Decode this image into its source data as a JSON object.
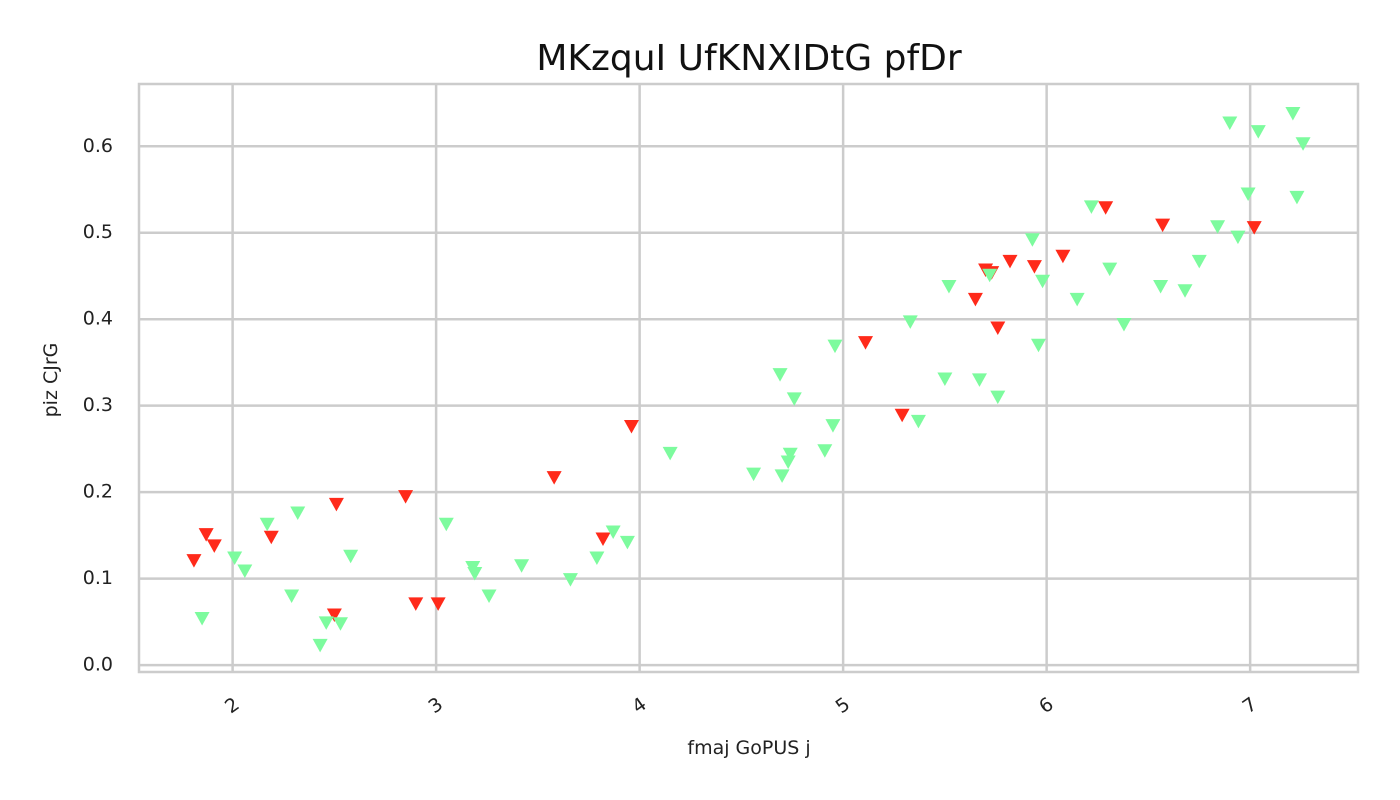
{
  "chart_data": {
    "type": "scatter",
    "title": "MKzquI UfKNXIDtG pfDr",
    "xlabel": "fmaj GoPUS j",
    "ylabel": "piz CJrG",
    "xlim": [
      1.54,
      7.53
    ],
    "ylim": [
      -0.008,
      0.672
    ],
    "xticks": [
      2,
      3,
      4,
      5,
      6,
      7
    ],
    "xtick_labels": [
      "2",
      "3",
      "4",
      "5",
      "6",
      "7"
    ],
    "yticks": [
      0.0,
      0.1,
      0.2,
      0.3,
      0.4,
      0.5,
      0.6
    ],
    "ytick_labels": [
      "0.0",
      "0.1",
      "0.2",
      "0.3",
      "0.4",
      "0.5",
      "0.6"
    ],
    "grid": true,
    "marker": "triangle-down",
    "series": [
      {
        "color": "#ff2a1a",
        "points": [
          [
            1.81,
            0.121
          ],
          [
            1.87,
            0.151
          ],
          [
            1.91,
            0.138
          ],
          [
            2.19,
            0.148
          ],
          [
            2.51,
            0.186
          ],
          [
            2.5,
            0.058
          ],
          [
            2.85,
            0.195
          ],
          [
            2.9,
            0.071
          ],
          [
            3.01,
            0.071
          ],
          [
            3.58,
            0.217
          ],
          [
            3.82,
            0.146
          ],
          [
            3.96,
            0.276
          ],
          [
            5.11,
            0.373
          ],
          [
            5.29,
            0.289
          ],
          [
            5.65,
            0.423
          ],
          [
            5.7,
            0.457
          ],
          [
            5.73,
            0.454
          ],
          [
            5.76,
            0.39
          ],
          [
            5.82,
            0.467
          ],
          [
            5.94,
            0.461
          ],
          [
            6.08,
            0.473
          ],
          [
            6.29,
            0.529
          ],
          [
            6.57,
            0.509
          ],
          [
            7.02,
            0.506
          ]
        ]
      },
      {
        "color": "#7dfb9e",
        "points": [
          [
            1.85,
            0.054
          ],
          [
            2.01,
            0.124
          ],
          [
            2.06,
            0.109
          ],
          [
            2.17,
            0.163
          ],
          [
            2.29,
            0.08
          ],
          [
            2.32,
            0.176
          ],
          [
            2.43,
            0.023
          ],
          [
            2.46,
            0.049
          ],
          [
            2.53,
            0.048
          ],
          [
            2.58,
            0.126
          ],
          [
            3.05,
            0.163
          ],
          [
            3.18,
            0.113
          ],
          [
            3.19,
            0.106
          ],
          [
            3.26,
            0.08
          ],
          [
            3.42,
            0.115
          ],
          [
            3.66,
            0.099
          ],
          [
            3.79,
            0.124
          ],
          [
            3.87,
            0.154
          ],
          [
            3.94,
            0.142
          ],
          [
            4.15,
            0.245
          ],
          [
            4.56,
            0.221
          ],
          [
            4.7,
            0.219
          ],
          [
            4.69,
            0.336
          ],
          [
            4.73,
            0.235
          ],
          [
            4.74,
            0.244
          ],
          [
            4.76,
            0.308
          ],
          [
            4.91,
            0.248
          ],
          [
            4.95,
            0.277
          ],
          [
            4.96,
            0.369
          ],
          [
            5.33,
            0.397
          ],
          [
            5.37,
            0.282
          ],
          [
            5.5,
            0.331
          ],
          [
            5.52,
            0.438
          ],
          [
            5.67,
            0.33
          ],
          [
            5.72,
            0.451
          ],
          [
            5.76,
            0.31
          ],
          [
            5.93,
            0.492
          ],
          [
            5.96,
            0.37
          ],
          [
            5.98,
            0.444
          ],
          [
            6.15,
            0.423
          ],
          [
            6.22,
            0.53
          ],
          [
            6.31,
            0.458
          ],
          [
            6.38,
            0.394
          ],
          [
            6.56,
            0.438
          ],
          [
            6.68,
            0.433
          ],
          [
            6.75,
            0.467
          ],
          [
            6.84,
            0.507
          ],
          [
            6.9,
            0.627
          ],
          [
            6.94,
            0.495
          ],
          [
            6.99,
            0.545
          ],
          [
            7.04,
            0.617
          ],
          [
            7.21,
            0.638
          ],
          [
            7.23,
            0.541
          ],
          [
            7.26,
            0.603
          ]
        ]
      }
    ]
  }
}
